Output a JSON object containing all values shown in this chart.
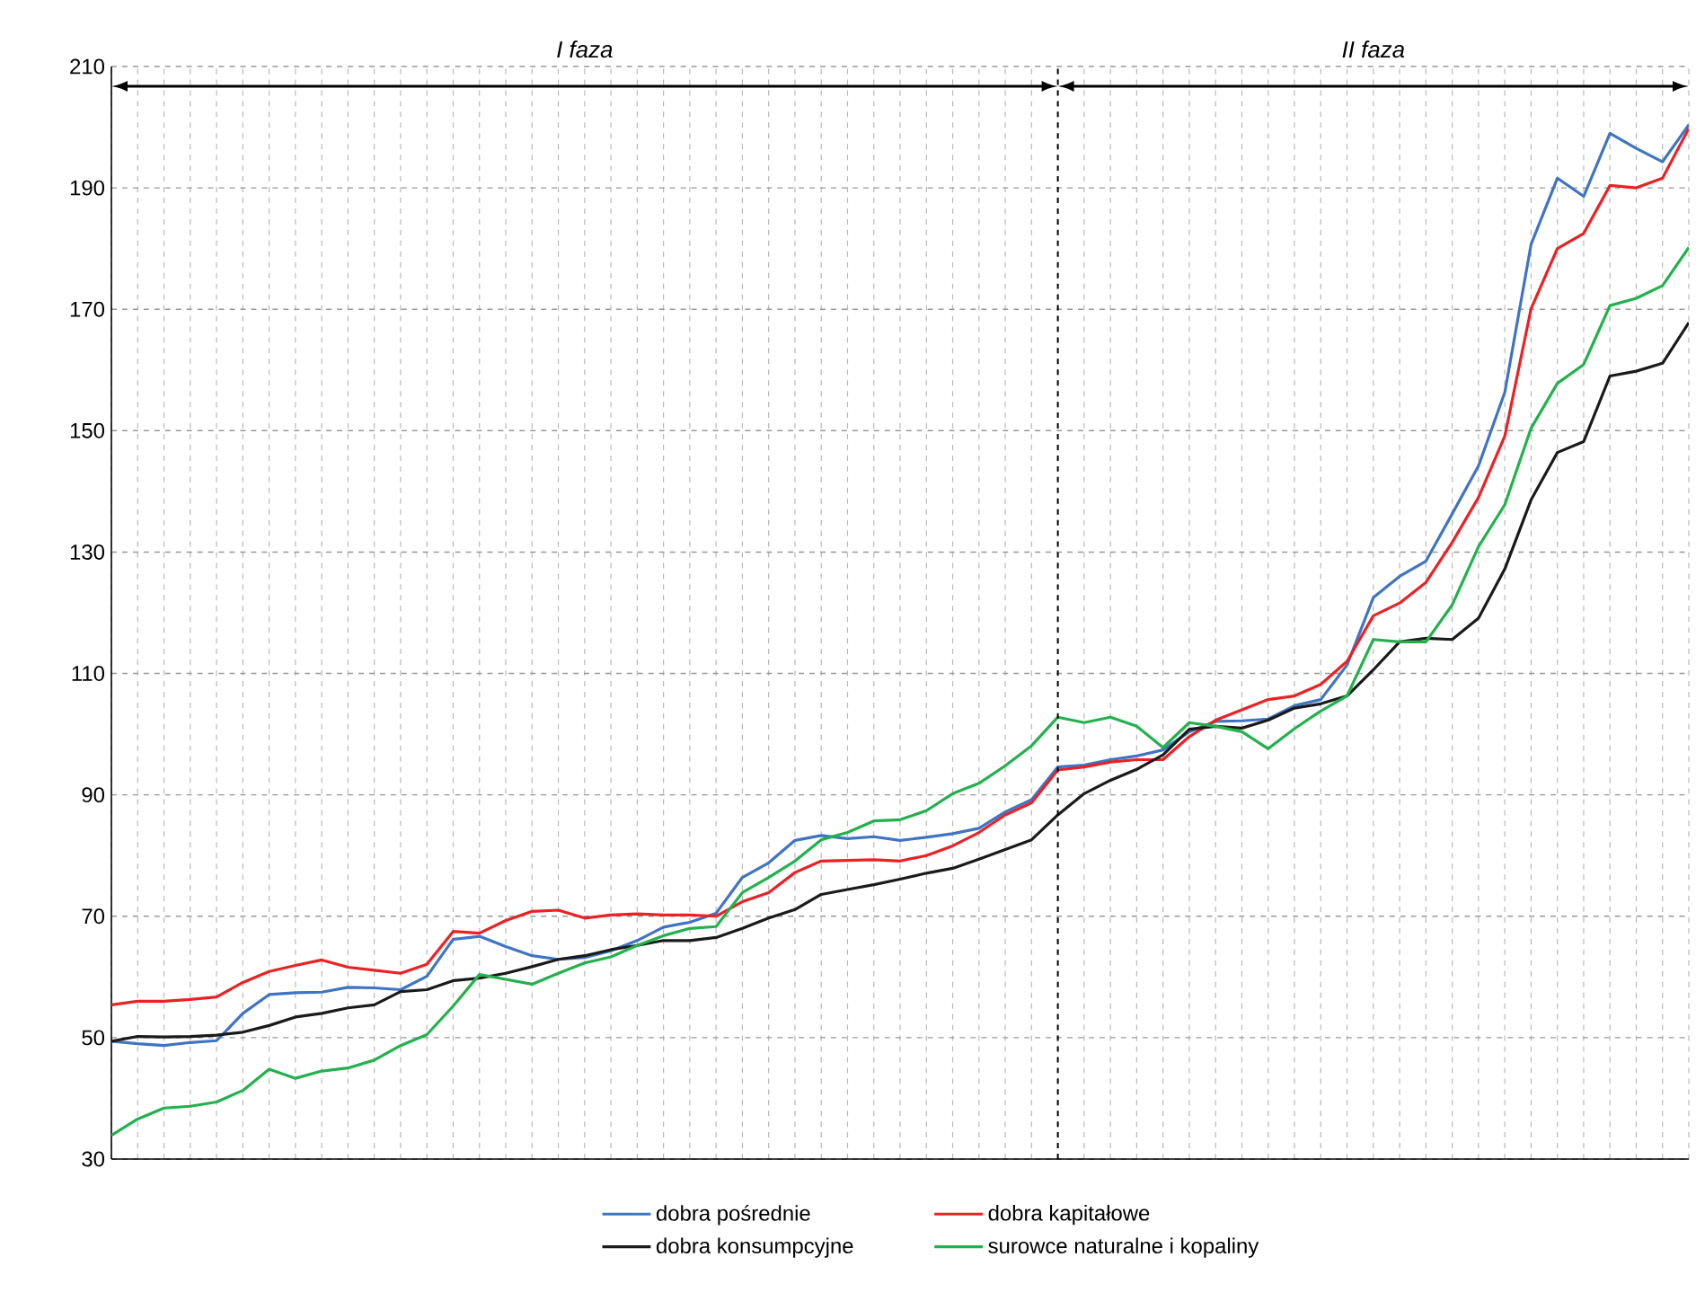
{
  "chart_data": {
    "type": "line",
    "categories": [
      null,
      null,
      null,
      null,
      null,
      null,
      null,
      null,
      null,
      null,
      null,
      null,
      null,
      null,
      null,
      null,
      null,
      null,
      null,
      null,
      null,
      null,
      null,
      null,
      null,
      null,
      null,
      null,
      null,
      null,
      null,
      null,
      null,
      null,
      null,
      null,
      null,
      null,
      null,
      null,
      null,
      null,
      null,
      null,
      null,
      null,
      null,
      null,
      null,
      null,
      null,
      null,
      null,
      null,
      null,
      null,
      null,
      null,
      null,
      null,
      null
    ],
    "ylim": [
      30,
      210
    ],
    "yticks": [
      30,
      50,
      70,
      90,
      110,
      130,
      150,
      170,
      190,
      210
    ],
    "grid": true,
    "legend": "bottom",
    "series": [
      {
        "name": "dobra pośrednie",
        "color": "#3f74c4",
        "values": [
          49.4,
          49.0,
          48.7,
          49.2,
          49.5,
          54.0,
          57.1,
          57.4,
          57.5,
          58.3,
          58.2,
          57.9,
          60.1,
          66.2,
          66.7,
          65.0,
          63.5,
          62.9,
          63.2,
          64.3,
          66.0,
          68.2,
          69.0,
          70.5,
          76.4,
          78.8,
          82.5,
          83.3,
          82.8,
          83.1,
          82.5,
          83.0,
          83.6,
          84.5,
          87.2,
          89.2,
          94.6,
          94.9,
          95.8,
          96.4,
          97.4,
          100.4,
          102.1,
          102.2,
          102.5,
          104.7,
          105.7,
          111.4,
          122.5,
          126.0,
          128.5,
          136.3,
          144.2,
          156.3,
          180.7,
          191.6,
          188.6,
          199.0,
          196.5,
          194.3,
          200.4
        ]
      },
      {
        "name": "dobra kapitałowe",
        "color": "#ed2024",
        "values": [
          55.4,
          56.0,
          56.0,
          56.3,
          56.7,
          59.1,
          60.9,
          61.9,
          62.8,
          61.6,
          61.1,
          60.6,
          62.1,
          67.5,
          67.2,
          69.3,
          70.8,
          71.0,
          69.7,
          70.2,
          70.4,
          70.2,
          70.2,
          70.0,
          72.4,
          73.9,
          77.2,
          79.1,
          79.2,
          79.3,
          79.1,
          80.0,
          81.6,
          83.8,
          86.7,
          88.7,
          94.1,
          94.6,
          95.4,
          95.8,
          95.8,
          99.6,
          102.3,
          104.0,
          105.7,
          106.3,
          108.2,
          112.0,
          119.5,
          121.6,
          125.0,
          131.6,
          139.0,
          149.1,
          170.1,
          180.0,
          182.5,
          190.4,
          190.0,
          191.6,
          199.8
        ]
      },
      {
        "name": "dobra konsumpcyjne",
        "color": "#1a1a1a",
        "values": [
          49.4,
          50.2,
          50.1,
          50.2,
          50.4,
          50.9,
          52.0,
          53.4,
          54.0,
          54.9,
          55.4,
          57.6,
          57.9,
          59.4,
          59.8,
          60.6,
          61.7,
          62.9,
          63.5,
          64.5,
          65.2,
          66.0,
          66.0,
          66.5,
          68.0,
          69.7,
          71.1,
          73.6,
          74.4,
          75.2,
          76.1,
          77.1,
          77.9,
          79.4,
          81.0,
          82.6,
          86.7,
          90.2,
          92.4,
          94.2,
          96.6,
          100.8,
          101.3,
          101.0,
          102.3,
          104.3,
          105.0,
          106.3,
          110.6,
          115.2,
          115.8,
          115.6,
          119.1,
          127.2,
          138.6,
          146.4,
          148.2,
          159.0,
          159.8,
          161.1,
          167.8
        ]
      },
      {
        "name": "surowce naturalne i kopaliny",
        "color": "#22b14c",
        "values": [
          33.9,
          36.6,
          38.4,
          38.7,
          39.4,
          41.3,
          44.8,
          43.3,
          44.5,
          45.0,
          46.3,
          48.7,
          50.5,
          55.2,
          60.4,
          59.6,
          58.8,
          60.6,
          62.3,
          63.3,
          65.2,
          66.8,
          68.0,
          68.3,
          73.9,
          76.4,
          79.1,
          82.6,
          83.8,
          85.7,
          85.9,
          87.4,
          90.2,
          91.9,
          94.8,
          98.1,
          102.8,
          101.9,
          102.8,
          101.3,
          97.8,
          101.9,
          101.3,
          100.4,
          97.6,
          100.9,
          103.8,
          106.3,
          115.6,
          115.2,
          115.2,
          121.3,
          130.9,
          137.8,
          150.4,
          157.8,
          160.9,
          170.6,
          171.8,
          173.9,
          180.2
        ]
      }
    ],
    "annotations": [
      "I faza",
      "II faza"
    ]
  }
}
